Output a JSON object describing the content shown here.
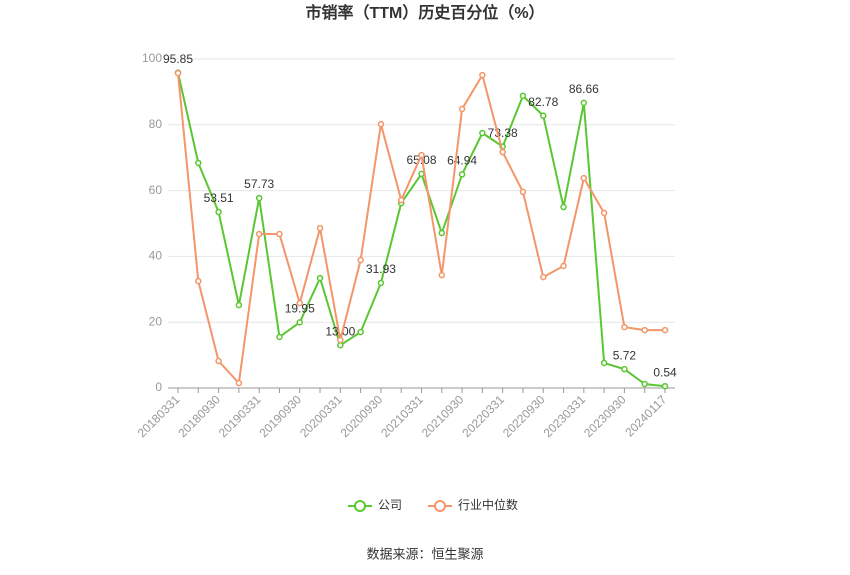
{
  "chart_data": {
    "type": "line",
    "title": "市销率（TTM）历史百分位（%）",
    "source": "数据来源：恒生聚源",
    "categories": [
      "20180331",
      null,
      "20180930",
      null,
      "20190331",
      null,
      "20190930",
      null,
      "20200331",
      null,
      "20200930",
      null,
      "20210331",
      null,
      "20210930",
      null,
      "20220331",
      null,
      "20220930",
      null,
      "20230331",
      null,
      "20230930",
      null,
      "20240117"
    ],
    "series": [
      {
        "name": "公司",
        "color": "#5ac732",
        "values": [
          95.85,
          68.4,
          53.51,
          25.2,
          57.73,
          15.5,
          19.95,
          33.4,
          13.0,
          17.0,
          31.93,
          56.2,
          65.08,
          47.1,
          64.94,
          77.5,
          73.38,
          88.8,
          82.78,
          55.0,
          86.66,
          7.6,
          5.72,
          1.2,
          0.54
        ],
        "value_labels": [
          "95.85",
          null,
          "53.51",
          null,
          "57.73",
          null,
          "19.95",
          null,
          "13.00",
          null,
          "31.93",
          null,
          "65.08",
          null,
          "64.94",
          null,
          "73.38",
          null,
          "82.78",
          null,
          "86.66",
          null,
          "5.72",
          null,
          "0.54"
        ]
      },
      {
        "name": "行业中位数",
        "color": "#f4956a",
        "values": [
          95.7,
          32.5,
          8.2,
          1.5,
          46.8,
          46.8,
          25.8,
          48.6,
          14.6,
          38.9,
          80.2,
          57.1,
          70.8,
          34.3,
          84.8,
          95.1,
          71.7,
          59.6,
          33.7,
          37.1,
          63.8,
          53.2,
          18.5,
          17.6,
          17.6
        ]
      }
    ],
    "ylim": [
      0,
      100
    ],
    "yticks": [
      0,
      20,
      40,
      60,
      80,
      100
    ],
    "grid": true,
    "legend": "bottom"
  }
}
